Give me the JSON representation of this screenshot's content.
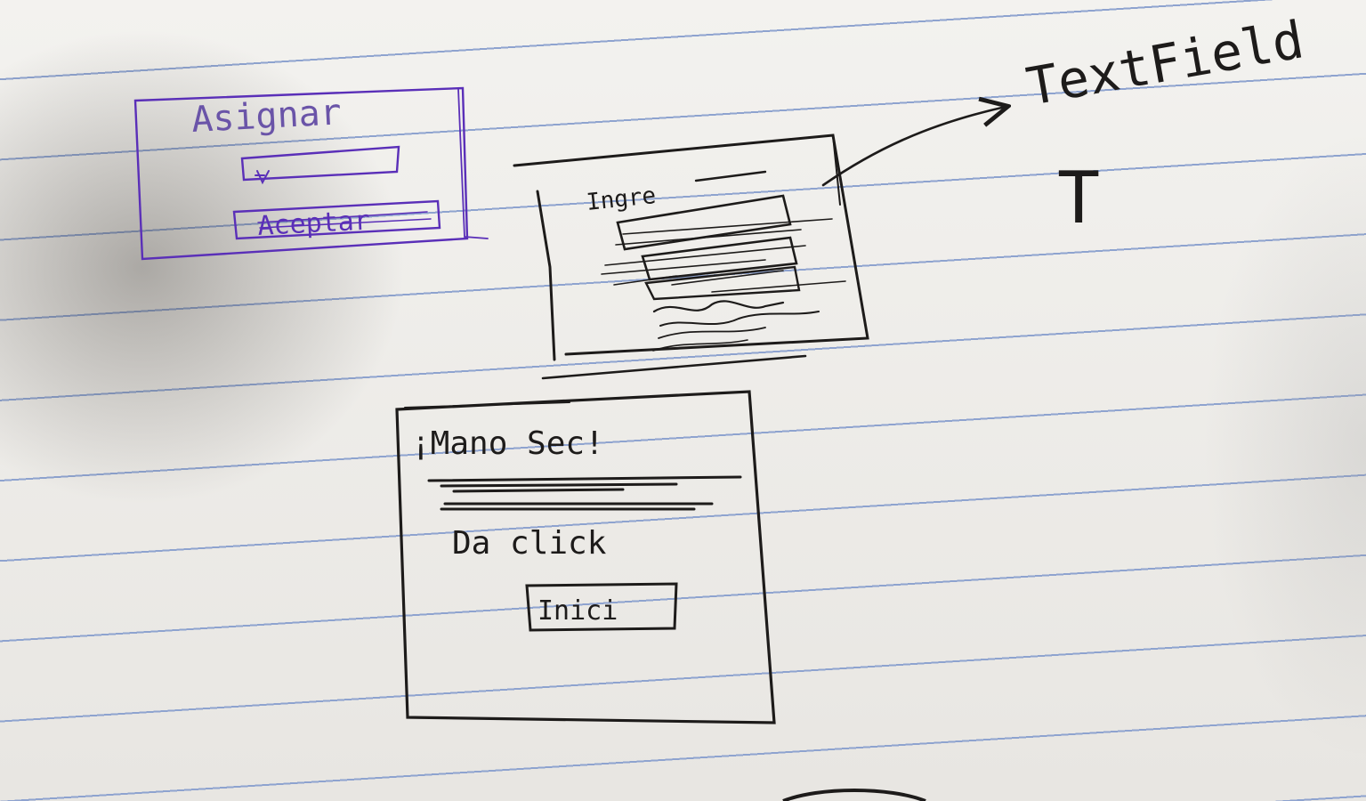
{
  "sketch": {
    "panel_assign": {
      "title": "Asignar",
      "accept_label": "Aceptar",
      "ink_color": "#5a2fb8"
    },
    "panel_input": {
      "label": "Ingre",
      "ink_color": "#1d1b1a"
    },
    "panel_welcome": {
      "title": "¡Mano Sec!",
      "instruction": "Da click",
      "button_label": "Inici"
    },
    "annotation": {
      "label": "TextField",
      "symbol": "T"
    }
  }
}
